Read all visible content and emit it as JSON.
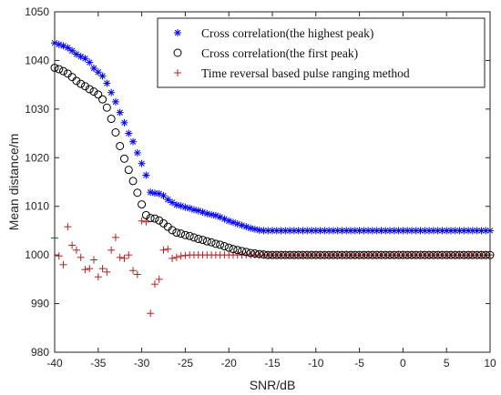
{
  "chart_data": {
    "type": "scatter",
    "xlabel": "SNR/dB",
    "ylabel": "Mean distance/m",
    "xlim": [
      -40,
      10
    ],
    "ylim": [
      980,
      1050
    ],
    "xticks": [
      -40,
      -35,
      -30,
      -25,
      -20,
      -15,
      -10,
      -5,
      0,
      5,
      10
    ],
    "yticks": [
      980,
      990,
      1000,
      1010,
      1020,
      1030,
      1040,
      1050
    ],
    "grid": false,
    "legend_position": "top-right",
    "series": [
      {
        "name": "Cross correlation(the highest peak)",
        "marker": "asterisk",
        "color": "#0000ff",
        "x": [
          -40,
          -39.5,
          -39,
          -38.5,
          -38,
          -37.5,
          -37,
          -36.5,
          -36,
          -35.5,
          -35,
          -34.5,
          -34,
          -33.5,
          -33,
          -32.5,
          -32,
          -31.5,
          -31,
          -30.5,
          -30,
          -29.5,
          -29,
          -28.5,
          -28,
          -27.5,
          -27,
          -26.5,
          -26,
          -25.5,
          -25,
          -24.5,
          -24,
          -23.5,
          -23,
          -22.5,
          -22,
          -21.5,
          -21,
          -20.5,
          -20,
          -19.5,
          -19,
          -18.5,
          -18,
          -17.5,
          -17,
          -16.5,
          -16,
          -15.5,
          -15,
          -14.5,
          -14,
          -13.5,
          -13,
          -12.5,
          -12,
          -11.5,
          -11,
          -10.5,
          -10,
          -9.5,
          -9,
          -8.5,
          -8,
          -7.5,
          -7,
          -6.5,
          -6,
          -5.5,
          -5,
          -4.5,
          -4,
          -3.5,
          -3,
          -2.5,
          -2,
          -1.5,
          -1,
          -0.5,
          0,
          0.5,
          1,
          1.5,
          2,
          2.5,
          3,
          3.5,
          4,
          4.5,
          5,
          5.5,
          6,
          6.5,
          7,
          7.5,
          8,
          8.5,
          9,
          9.5,
          10
        ],
        "y": [
          1043.6,
          1043.3,
          1043,
          1042.6,
          1042,
          1041.3,
          1040.8,
          1040.4,
          1039.6,
          1038.4,
          1037.6,
          1036.8,
          1035.3,
          1033.4,
          1031.5,
          1029.3,
          1027.2,
          1025,
          1023.3,
          1021,
          1018.8,
          1016.4,
          1012.9,
          1012.7,
          1012.6,
          1012.2,
          1011.4,
          1010.8,
          1010.3,
          1010.1,
          1009.8,
          1009.6,
          1009.3,
          1009.1,
          1008.8,
          1008.5,
          1008.3,
          1008.1,
          1007.8,
          1007.4,
          1007,
          1006.7,
          1006.4,
          1006.1,
          1005.8,
          1005.5,
          1005.3,
          1005.1,
          1005,
          1005,
          1005,
          1005,
          1005,
          1005,
          1005,
          1005,
          1005,
          1005,
          1005,
          1005,
          1005,
          1005,
          1005,
          1005,
          1005,
          1005,
          1005,
          1005,
          1005,
          1005,
          1005,
          1005,
          1005,
          1005,
          1005,
          1005,
          1005,
          1005,
          1005,
          1005,
          1005,
          1005,
          1005,
          1005,
          1005,
          1005,
          1005,
          1005,
          1005,
          1005,
          1005,
          1005,
          1005,
          1005,
          1005,
          1005,
          1005,
          1005,
          1005,
          1005,
          1005
        ]
      },
      {
        "name": "Cross correlation(the first peak)",
        "marker": "circle",
        "color": "#000000",
        "x": [
          -40,
          -39.5,
          -39,
          -38.5,
          -38,
          -37.5,
          -37,
          -36.5,
          -36,
          -35.5,
          -35,
          -34.5,
          -34,
          -33.5,
          -33,
          -32.5,
          -32,
          -31.5,
          -31,
          -30.5,
          -30,
          -29.5,
          -29,
          -28.5,
          -28,
          -27.5,
          -27,
          -26.5,
          -26,
          -25.5,
          -25,
          -24.5,
          -24,
          -23.5,
          -23,
          -22.5,
          -22,
          -21.5,
          -21,
          -20.5,
          -20,
          -19.5,
          -19,
          -18.5,
          -18,
          -17.5,
          -17,
          -16.5,
          -16,
          -15.5,
          -15,
          -14.5,
          -14,
          -13.5,
          -13,
          -12.5,
          -12,
          -11.5,
          -11,
          -10.5,
          -10,
          -9.5,
          -9,
          -8.5,
          -8,
          -7.5,
          -7,
          -6.5,
          -6,
          -5.5,
          -5,
          -4.5,
          -4,
          -3.5,
          -3,
          -2.5,
          -2,
          -1.5,
          -1,
          -0.5,
          0,
          0.5,
          1,
          1.5,
          2,
          2.5,
          3,
          3.5,
          4,
          4.5,
          5,
          5.5,
          6,
          6.5,
          7,
          7.5,
          8,
          8.5,
          9,
          9.5,
          10
        ],
        "y": [
          1038.5,
          1038.2,
          1037.8,
          1037.3,
          1036.6,
          1035.8,
          1035.2,
          1034.7,
          1034.1,
          1033.6,
          1033,
          1032,
          1030.3,
          1028,
          1025.2,
          1022.4,
          1019.8,
          1017.5,
          1015.2,
          1012.8,
          1010.4,
          1008.2,
          1007.6,
          1007.5,
          1007.1,
          1006.5,
          1005.8,
          1005.1,
          1004.6,
          1004.4,
          1004.1,
          1003.9,
          1003.6,
          1003.3,
          1003.1,
          1002.8,
          1002.6,
          1002.3,
          1002.1,
          1001.8,
          1001.5,
          1001.2,
          1001,
          1000.8,
          1000.6,
          1000.4,
          1000.3,
          1000.2,
          1000.1,
          1000,
          1000,
          1000,
          1000,
          1000,
          1000,
          1000,
          1000,
          1000,
          1000,
          1000,
          1000,
          1000,
          1000,
          1000,
          1000,
          1000,
          1000,
          1000,
          1000,
          1000,
          1000,
          1000,
          1000,
          1000,
          1000,
          1000,
          1000,
          1000,
          1000,
          1000,
          1000,
          1000,
          1000,
          1000,
          1000,
          1000,
          1000,
          1000,
          1000,
          1000,
          1000,
          1000,
          1000,
          1000,
          1000,
          1000,
          1000,
          1000,
          1000,
          1000,
          1000
        ]
      },
      {
        "name": "Time reversal based pulse ranging method",
        "marker": "plus",
        "color": "#b22222",
        "x": [
          -40,
          -39.5,
          -39,
          -38.5,
          -38,
          -37.5,
          -37,
          -36.5,
          -36,
          -35.5,
          -35,
          -34.5,
          -34,
          -33.5,
          -33,
          -32.5,
          -32,
          -31.5,
          -31,
          -30.5,
          -30,
          -29.5,
          -29,
          -28.5,
          -28,
          -27.5,
          -27,
          -26.5,
          -26,
          -25.5,
          -25,
          -24.5,
          -24,
          -23.5,
          -23,
          -22.5,
          -22,
          -21.5,
          -21,
          -20.5,
          -20,
          -19.5,
          -19,
          -18.5,
          -18,
          -17.5,
          -17,
          -16.5,
          -16,
          -15.5,
          -15,
          -14.5,
          -14,
          -13.5,
          -13,
          -12.5,
          -12,
          -11.5,
          -11,
          -10.5,
          -10,
          -9.5,
          -9,
          -8.5,
          -8,
          -7.5,
          -7,
          -6.5,
          -6,
          -5.5,
          -5,
          -4.5,
          -4,
          -3.5,
          -3,
          -2.5,
          -2,
          -1.5,
          -1,
          -0.5,
          0,
          0.5,
          1,
          1.5,
          2,
          2.5,
          3,
          3.5,
          4,
          4.5,
          5,
          5.5,
          6,
          6.5,
          7,
          7.5,
          8,
          8.5,
          9,
          9.5,
          10
        ],
        "y": [
          1003.5,
          999.8,
          998,
          1005.8,
          1002,
          1001,
          999.5,
          997,
          997.2,
          999,
          995.5,
          997.2,
          996.5,
          1001,
          1003.6,
          999.5,
          999.3,
          1000,
          996.8,
          996,
          1007,
          1006.8,
          988,
          994,
          995,
          1001,
          1001.2,
          999.3,
          999.5,
          999.8,
          999.9,
          1000,
          1000,
          1000,
          1000,
          1000,
          1000,
          1000,
          1000,
          1000,
          1000,
          1000,
          1000,
          1000,
          1000,
          1000,
          1000,
          1000,
          1000,
          1000,
          1000,
          1000,
          1000,
          1000,
          1000,
          1000,
          1000,
          1000,
          1000,
          1000,
          1000,
          1000,
          1000,
          1000,
          1000,
          1000,
          1000,
          1000,
          1000,
          1000,
          1000,
          1000,
          1000,
          1000,
          1000,
          1000,
          1000,
          1000,
          1000,
          1000,
          1000,
          1000,
          1000,
          1000,
          1000,
          1000,
          1000,
          1000,
          1000,
          1000,
          1000,
          1000,
          1000,
          1000,
          1000,
          1000,
          1000,
          1000,
          1000,
          1000,
          1000
        ]
      }
    ]
  }
}
